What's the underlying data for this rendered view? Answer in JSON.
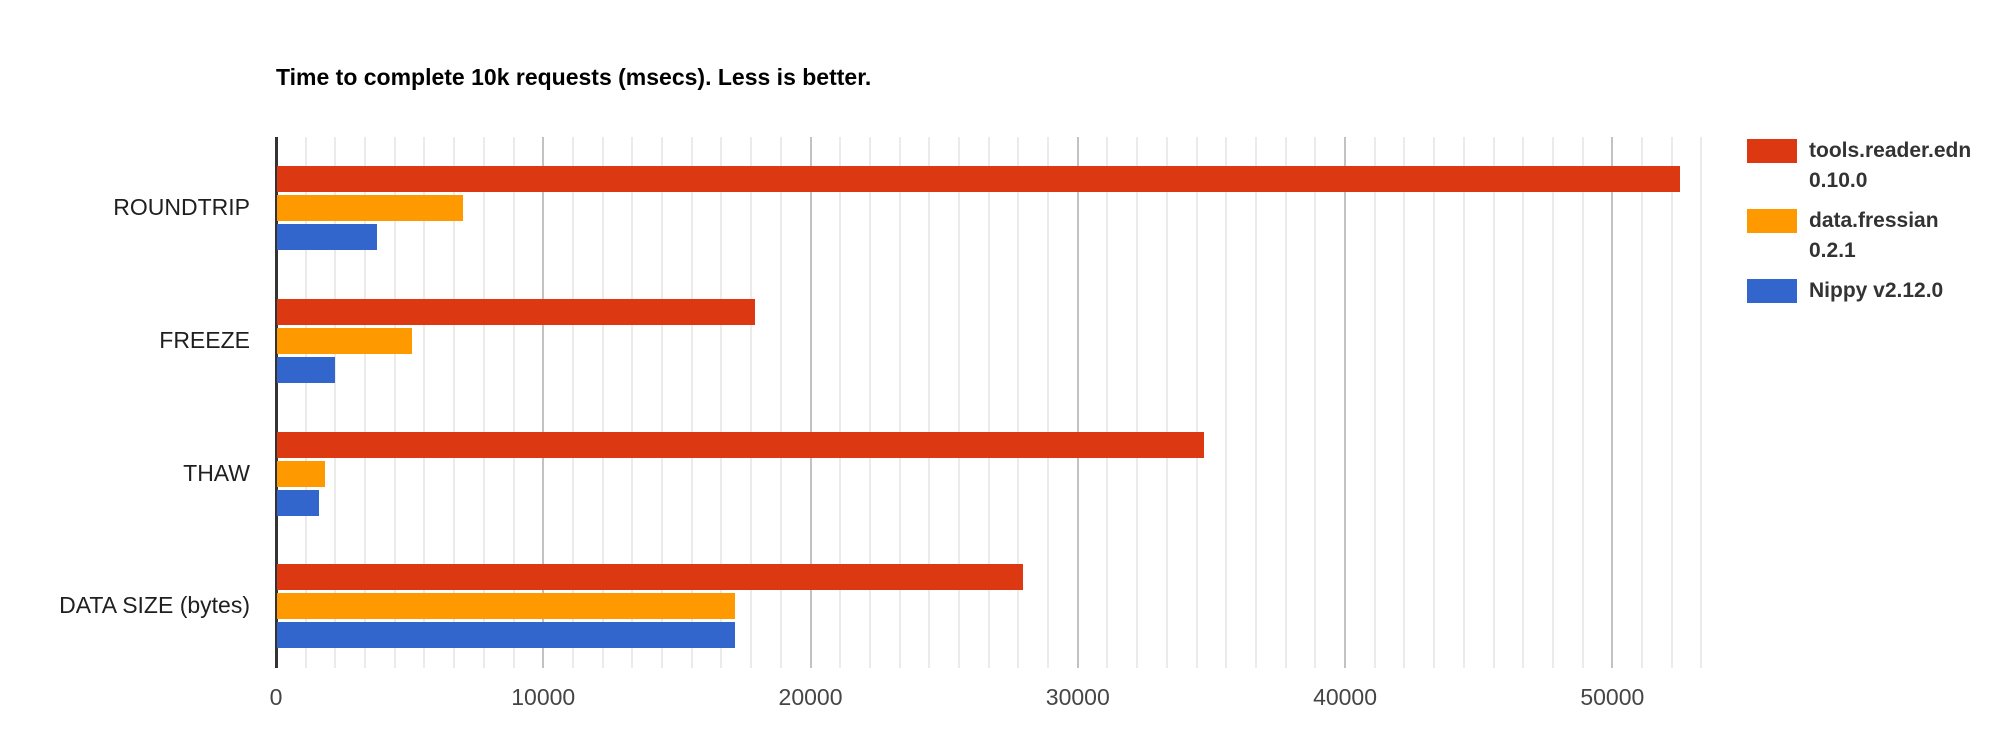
{
  "chart_data": {
    "type": "bar",
    "orientation": "horizontal",
    "title": "Time to complete 10k requests (msecs). Less is better.",
    "categories": [
      "ROUNDTRIP",
      "FREEZE",
      "THAW",
      "DATA SIZE (bytes)"
    ],
    "series": [
      {
        "name": "tools.reader.edn 0.10.0",
        "legend_lines": [
          "tools.reader.edn",
          "0.10.0"
        ],
        "color": "#dc3912",
        "values": [
          52500,
          17900,
          34700,
          27900
        ]
      },
      {
        "name": "data.fressian 0.2.1",
        "legend_lines": [
          "data.fressian",
          "0.2.1"
        ],
        "color": "#ff9900",
        "values": [
          6950,
          5050,
          1800,
          17150
        ]
      },
      {
        "name": "Nippy v2.12.0",
        "legend_lines": [
          "Nippy v2.12.0"
        ],
        "color": "#3366cc",
        "values": [
          3750,
          2170,
          1570,
          17150
        ]
      }
    ],
    "x_axis": {
      "ticks": [
        0,
        10000,
        20000,
        30000,
        40000,
        50000
      ],
      "tick_labels": [
        "0",
        "10000",
        "20000",
        "30000",
        "40000",
        "50000"
      ],
      "min": 0,
      "max": 53430,
      "minor_gridlines_per_major": 9
    },
    "ylabel": "",
    "xlabel": "",
    "legend_position": "right",
    "grid": true
  },
  "colors": {
    "background": "#ffffff",
    "minor_gridline": "#ebebeb",
    "major_gridline": "#c2c2c2",
    "axis_baseline": "#333333",
    "title_text": "#000000",
    "category_text": "#1f1f1f",
    "tick_text": "#454545",
    "legend_text": "#333333"
  }
}
